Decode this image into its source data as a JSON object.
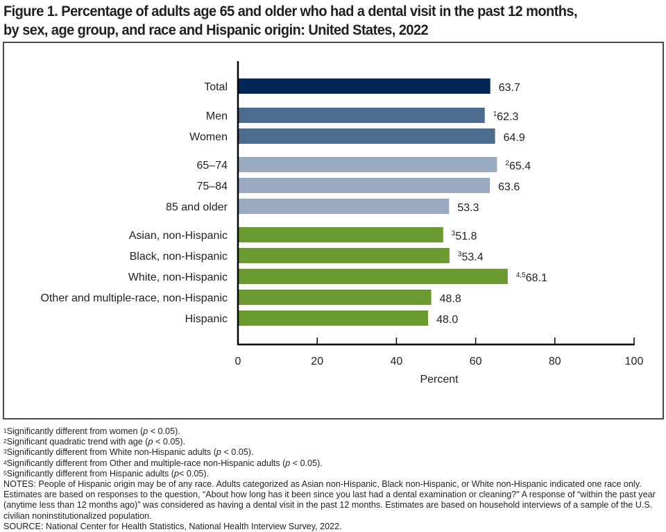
{
  "title": {
    "line1": "Figure 1. Percentage of adults age 65 and older who had a dental visit in the past 12 months,",
    "line2": "by sex, age group, and race and Hispanic origin: United States, 2022"
  },
  "colors": {
    "total": "#002856",
    "sex": "#4d6a8f",
    "age": "#9aabc1",
    "race": "#6b9a33"
  },
  "chart_data": {
    "type": "bar",
    "orientation": "horizontal",
    "title": "Percentage of adults age 65 and older who had a dental visit in the past 12 months, by sex, age group, and race and Hispanic origin: United States, 2022",
    "xlabel": "Percent",
    "ylabel": "",
    "xlim": [
      0,
      100
    ],
    "xticks": [
      "0",
      "20",
      "40",
      "60",
      "80",
      "100"
    ],
    "grid": false,
    "legend": "none",
    "categories": [
      "Total",
      "Men",
      "Women",
      "65–74",
      "75–84",
      "85 and older",
      "Asian, non-Hispanic",
      "Black, non-Hispanic",
      "White, non-Hispanic",
      "Other and multiple-race, non-Hispanic",
      "Hispanic"
    ],
    "values": [
      63.7,
      62.3,
      64.9,
      65.4,
      63.6,
      53.3,
      51.8,
      53.4,
      68.1,
      48.8,
      48.0
    ],
    "groups": [
      "total",
      "sex",
      "sex",
      "age",
      "age",
      "age",
      "race",
      "race",
      "race",
      "race",
      "race"
    ],
    "value_labels": [
      "63.7",
      "62.3",
      "64.9",
      "65.4",
      "63.6",
      "53.3",
      "51.8",
      "53.4",
      "68.1",
      "48.8",
      "48.0"
    ],
    "footnote_markers": [
      "",
      "1",
      "",
      "2",
      "",
      "",
      "3",
      "3",
      "4,5",
      "",
      ""
    ]
  },
  "footnotes": [
    {
      "marker": "1",
      "text": "Significantly different from women (",
      "p": "p",
      "tail": " < 0.05)."
    },
    {
      "marker": "2",
      "text": "Significant quadratic trend with age (",
      "p": "p",
      "tail": " < 0.05)."
    },
    {
      "marker": "3",
      "text": "Significantly different from White non-Hispanic adults (",
      "p": "p",
      "tail": " < 0.05)."
    },
    {
      "marker": "4",
      "text": "Significantly different from Other and multiple-race non-Hispanic adults (",
      "p": "p",
      "tail": " < 0.05)."
    },
    {
      "marker": "5",
      "text": "Significantly different from Hispanic adults (",
      "p": "p",
      "tail": "< 0.05)."
    }
  ],
  "notes": "NOTES: People of Hispanic origin may be of any race. Adults categorized as Asian non-Hispanic, Black non-Hispanic, or White non-Hispanic indicated one race only. Estimates are based on responses to the question, “About how long has it been since you last had a dental examination or cleaning?\" A response of “within the past year (anytime less than 12 months ago)” was considered as having a dental visit in the past 12 months. Estimates are based on household interviews of a sample of the U.S. civilian noninstitutionalized population.",
  "source": "SOURCE: National Center for Health Statistics, National Health Interview Survey, 2022."
}
